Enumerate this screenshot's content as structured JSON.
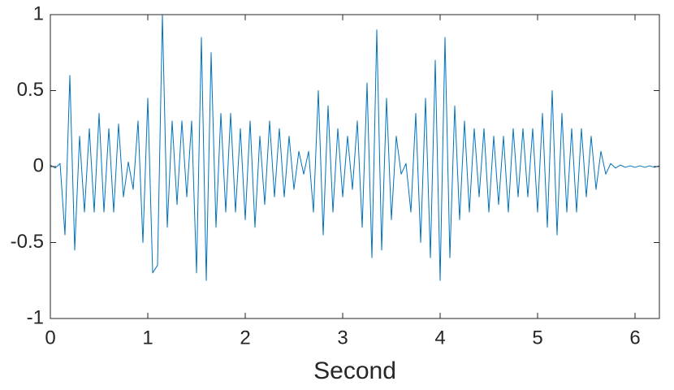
{
  "chart_data": {
    "type": "line",
    "xlabel": "Second",
    "x": [
      0,
      0.05,
      0.1,
      0.15,
      0.2,
      0.25,
      0.3,
      0.35,
      0.4,
      0.45,
      0.5,
      0.55,
      0.6,
      0.65,
      0.7,
      0.75,
      0.8,
      0.85,
      0.9,
      0.95,
      1,
      1.05,
      1.1,
      1.15,
      1.2,
      1.25,
      1.3,
      1.35,
      1.4,
      1.45,
      1.5,
      1.55,
      1.6,
      1.65,
      1.7,
      1.75,
      1.8,
      1.85,
      1.9,
      1.95,
      2,
      2.05,
      2.1,
      2.15,
      2.2,
      2.25,
      2.3,
      2.35,
      2.4,
      2.45,
      2.5,
      2.55,
      2.6,
      2.65,
      2.7,
      2.75,
      2.8,
      2.85,
      2.9,
      2.95,
      3,
      3.05,
      3.1,
      3.15,
      3.2,
      3.25,
      3.3,
      3.35,
      3.4,
      3.45,
      3.5,
      3.55,
      3.6,
      3.65,
      3.7,
      3.75,
      3.8,
      3.85,
      3.9,
      3.95,
      4,
      4.05,
      4.1,
      4.15,
      4.2,
      4.25,
      4.3,
      4.35,
      4.4,
      4.45,
      4.5,
      4.55,
      4.6,
      4.65,
      4.7,
      4.75,
      4.8,
      4.85,
      4.9,
      4.95,
      5,
      5.05,
      5.1,
      5.15,
      5.2,
      5.25,
      5.3,
      5.35,
      5.4,
      5.45,
      5.5,
      5.55,
      5.6,
      5.65,
      5.7,
      5.75,
      5.8,
      5.85,
      5.9,
      5.95,
      6,
      6.05,
      6.1,
      6.15,
      6.2,
      6.25
    ],
    "values": [
      0.01,
      -0.01,
      0.02,
      -0.45,
      0.6,
      -0.55,
      0.2,
      -0.3,
      0.25,
      -0.3,
      0.35,
      -0.3,
      0.25,
      -0.3,
      0.28,
      -0.2,
      0.03,
      -0.15,
      0.3,
      -0.5,
      0.45,
      -0.7,
      -0.65,
      1,
      -0.4,
      0.3,
      -0.25,
      0.3,
      -0.2,
      0.3,
      -0.7,
      0.85,
      -0.75,
      0.75,
      -0.4,
      0.35,
      -0.3,
      0.35,
      -0.3,
      0.25,
      -0.35,
      0.3,
      -0.4,
      0.2,
      -0.25,
      0.3,
      -0.2,
      0.25,
      -0.2,
      0.2,
      -0.15,
      0.1,
      -0.05,
      0.1,
      -0.3,
      0.5,
      -0.45,
      0.4,
      -0.3,
      0.25,
      -0.2,
      0.2,
      -0.15,
      0.3,
      -0.4,
      0.55,
      -0.6,
      0.9,
      -0.55,
      0.45,
      -0.35,
      0.2,
      -0.05,
      0.02,
      -0.3,
      0.35,
      -0.5,
      0.45,
      -0.6,
      0.7,
      -0.75,
      0.85,
      -0.6,
      0.4,
      -0.35,
      0.3,
      -0.3,
      0.25,
      -0.2,
      0.25,
      -0.3,
      0.2,
      -0.25,
      0.2,
      -0.3,
      0.25,
      -0.2,
      0.25,
      -0.2,
      0.25,
      -0.3,
      0.35,
      -0.4,
      0.5,
      -0.45,
      0.35,
      -0.3,
      0.25,
      -0.3,
      0.25,
      -0.2,
      0.2,
      -0.15,
      0.1,
      -0.05,
      0.02,
      -0.01,
      0.01,
      -0.005,
      0.005,
      -0.005,
      0.005,
      -0.005,
      0.005,
      -0.005,
      0.005
    ],
    "color": "#0072bd",
    "xlim": [
      0,
      6.25
    ],
    "ylim": [
      -1,
      1
    ],
    "xticks": [
      0,
      1,
      2,
      3,
      4,
      5,
      6
    ],
    "yticks": [
      -1,
      -0.5,
      0,
      0.5,
      1
    ]
  }
}
